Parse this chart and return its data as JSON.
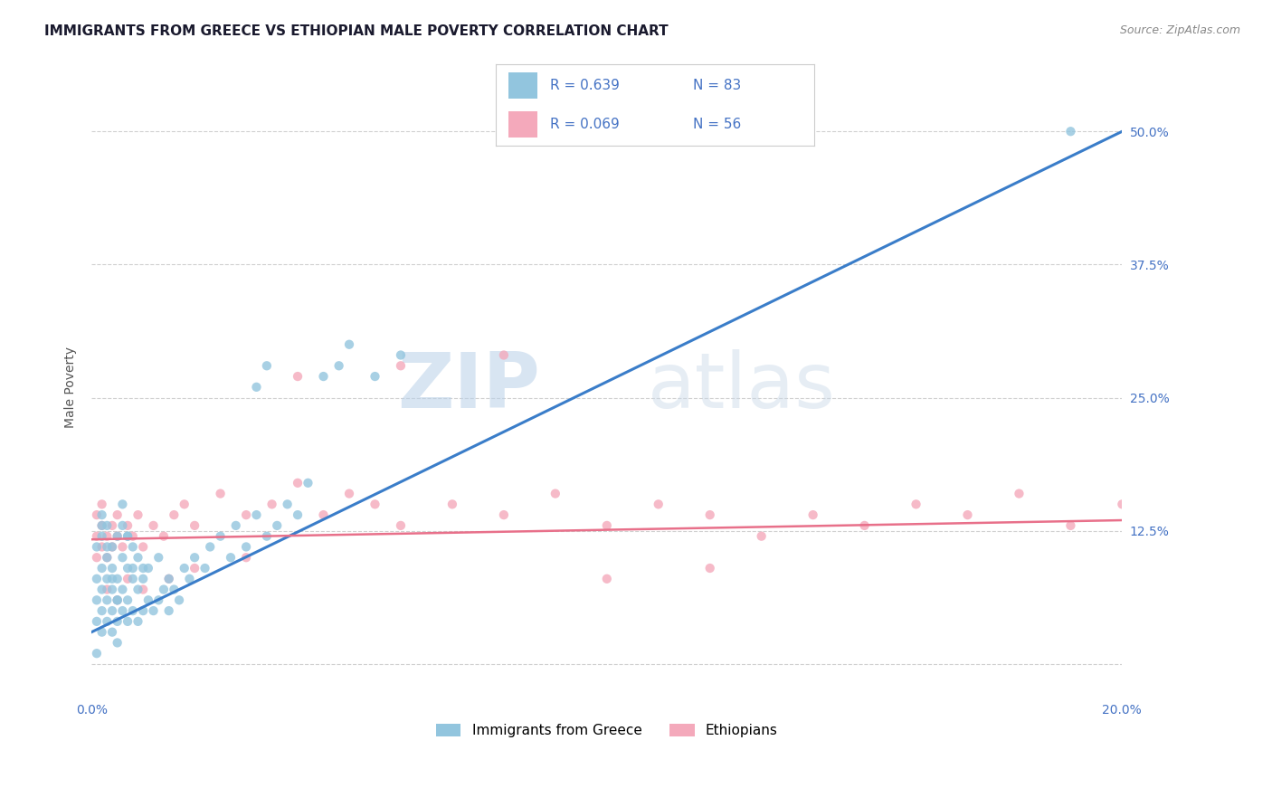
{
  "title": "IMMIGRANTS FROM GREECE VS ETHIOPIAN MALE POVERTY CORRELATION CHART",
  "source": "Source: ZipAtlas.com",
  "ylabel": "Male Poverty",
  "yticks": [
    0.0,
    0.125,
    0.25,
    0.375,
    0.5
  ],
  "ytick_labels": [
    "",
    "12.5%",
    "25.0%",
    "37.5%",
    "50.0%"
  ],
  "xlim": [
    0.0,
    0.2
  ],
  "ylim": [
    -0.03,
    0.55
  ],
  "blue_color": "#92C5DE",
  "pink_color": "#F4A9BB",
  "blue_line_color": "#3A7DC9",
  "pink_line_color": "#E8708A",
  "watermark_zip": "ZIP",
  "watermark_atlas": "atlas",
  "background_color": "#ffffff",
  "grid_color": "#d0d0d0",
  "blue_scatter_x": [
    0.001,
    0.001,
    0.001,
    0.001,
    0.002,
    0.002,
    0.002,
    0.002,
    0.002,
    0.003,
    0.003,
    0.003,
    0.003,
    0.004,
    0.004,
    0.004,
    0.004,
    0.005,
    0.005,
    0.005,
    0.005,
    0.006,
    0.006,
    0.006,
    0.007,
    0.007,
    0.007,
    0.008,
    0.008,
    0.009,
    0.009,
    0.01,
    0.01,
    0.011,
    0.011,
    0.012,
    0.013,
    0.013,
    0.014,
    0.015,
    0.015,
    0.016,
    0.017,
    0.018,
    0.019,
    0.02,
    0.022,
    0.023,
    0.025,
    0.027,
    0.028,
    0.03,
    0.032,
    0.034,
    0.036,
    0.038,
    0.04,
    0.042,
    0.045,
    0.048,
    0.05,
    0.055,
    0.06,
    0.032,
    0.034,
    0.002,
    0.003,
    0.004,
    0.005,
    0.006,
    0.007,
    0.008,
    0.009,
    0.01,
    0.002,
    0.003,
    0.004,
    0.005,
    0.006,
    0.007,
    0.008,
    0.001,
    0.19
  ],
  "blue_scatter_y": [
    0.04,
    0.06,
    0.08,
    0.11,
    0.05,
    0.07,
    0.09,
    0.12,
    0.03,
    0.06,
    0.08,
    0.1,
    0.13,
    0.05,
    0.07,
    0.09,
    0.11,
    0.04,
    0.06,
    0.08,
    0.12,
    0.05,
    0.07,
    0.1,
    0.04,
    0.06,
    0.09,
    0.05,
    0.08,
    0.04,
    0.07,
    0.05,
    0.08,
    0.06,
    0.09,
    0.05,
    0.06,
    0.1,
    0.07,
    0.05,
    0.08,
    0.07,
    0.06,
    0.09,
    0.08,
    0.1,
    0.09,
    0.11,
    0.12,
    0.1,
    0.13,
    0.11,
    0.14,
    0.12,
    0.13,
    0.15,
    0.14,
    0.17,
    0.27,
    0.28,
    0.3,
    0.27,
    0.29,
    0.26,
    0.28,
    0.13,
    0.04,
    0.03,
    0.02,
    0.13,
    0.12,
    0.11,
    0.1,
    0.09,
    0.14,
    0.11,
    0.08,
    0.06,
    0.15,
    0.12,
    0.09,
    0.01,
    0.5
  ],
  "pink_scatter_x": [
    0.001,
    0.001,
    0.001,
    0.002,
    0.002,
    0.002,
    0.003,
    0.003,
    0.004,
    0.004,
    0.005,
    0.005,
    0.006,
    0.007,
    0.008,
    0.009,
    0.01,
    0.012,
    0.014,
    0.016,
    0.018,
    0.02,
    0.025,
    0.03,
    0.035,
    0.04,
    0.045,
    0.05,
    0.055,
    0.06,
    0.07,
    0.08,
    0.09,
    0.1,
    0.11,
    0.12,
    0.13,
    0.14,
    0.15,
    0.16,
    0.17,
    0.18,
    0.19,
    0.2,
    0.04,
    0.06,
    0.08,
    0.1,
    0.12,
    0.003,
    0.005,
    0.007,
    0.01,
    0.015,
    0.02,
    0.03
  ],
  "pink_scatter_y": [
    0.12,
    0.14,
    0.1,
    0.11,
    0.13,
    0.15,
    0.12,
    0.1,
    0.13,
    0.11,
    0.14,
    0.12,
    0.11,
    0.13,
    0.12,
    0.14,
    0.11,
    0.13,
    0.12,
    0.14,
    0.15,
    0.13,
    0.16,
    0.14,
    0.15,
    0.17,
    0.14,
    0.16,
    0.15,
    0.13,
    0.15,
    0.14,
    0.16,
    0.13,
    0.15,
    0.14,
    0.12,
    0.14,
    0.13,
    0.15,
    0.14,
    0.16,
    0.13,
    0.15,
    0.27,
    0.28,
    0.29,
    0.08,
    0.09,
    0.07,
    0.06,
    0.08,
    0.07,
    0.08,
    0.09,
    0.1
  ],
  "blue_trend_x": [
    0.0,
    0.2
  ],
  "blue_trend_y": [
    0.03,
    0.5
  ],
  "pink_trend_x": [
    0.0,
    0.2
  ],
  "pink_trend_y": [
    0.117,
    0.135
  ],
  "legend_r1": "R = 0.639",
  "legend_n1": "N = 83",
  "legend_r2": "R = 0.069",
  "legend_n2": "N = 56",
  "legend_labels": [
    "Immigrants from Greece",
    "Ethiopians"
  ],
  "title_color": "#1a1a2e",
  "source_color": "#888888",
  "tick_color": "#4472C4",
  "ylabel_color": "#555555",
  "title_fontsize": 11,
  "axis_label_fontsize": 10,
  "tick_fontsize": 10,
  "legend_fontsize": 11
}
